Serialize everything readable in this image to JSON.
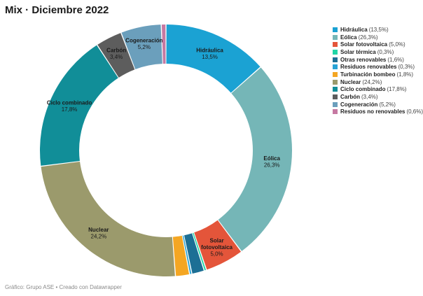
{
  "title": "Mix · Diciembre 2022",
  "footer": "Gráfico: Grupo ASE • Creado con Datawrapper",
  "chart_data": {
    "type": "pie",
    "subtype": "donut",
    "title": "Mix · Diciembre 2022",
    "unit": "%",
    "legend_position": "right",
    "slices": [
      {
        "name": "Hidráulica",
        "value": 13.5,
        "value_label": "13,5%",
        "legend_label": "(13,5%)",
        "color": "#1ba2d3",
        "chart_label": [
          "Hidráulica"
        ],
        "show_label": true
      },
      {
        "name": "Eólica",
        "value": 26.3,
        "value_label": "26,3%",
        "legend_label": "(26,3%)",
        "color": "#75b6b7",
        "chart_label": [
          "Eólica"
        ],
        "show_label": true
      },
      {
        "name": "Solar fotovoltaica",
        "value": 5.0,
        "value_label": "5,0%",
        "legend_label": "(5,0%)",
        "color": "#e4553a",
        "chart_label": [
          "Solar",
          "fotovoltaica"
        ],
        "show_label": true
      },
      {
        "name": "Solar térmica",
        "value": 0.3,
        "value_label": "0,3%",
        "legend_label": "(0,3%)",
        "color": "#20d5a6",
        "chart_label": [
          "Solar térmica"
        ],
        "show_label": false
      },
      {
        "name": "Otras renovables",
        "value": 1.6,
        "value_label": "1,6%",
        "legend_label": "(1,6%)",
        "color": "#1c6f95",
        "chart_label": [
          "Otras renovables"
        ],
        "show_label": false
      },
      {
        "name": "Residuos renovables",
        "value": 0.3,
        "value_label": "0,3%",
        "legend_label": "(0,3%)",
        "color": "#27a3d6",
        "chart_label": [
          "Residuos renovables"
        ],
        "show_label": false
      },
      {
        "name": "Turbinación bombeo",
        "value": 1.8,
        "value_label": "1,8%",
        "legend_label": "(1,8%)",
        "color": "#f4a623",
        "chart_label": [
          "Turbinación bombeo"
        ],
        "show_label": false
      },
      {
        "name": "Nuclear",
        "value": 24.2,
        "value_label": "24,2%",
        "legend_label": "(24,2%)",
        "color": "#9b9a6c",
        "chart_label": [
          "Nuclear"
        ],
        "show_label": true
      },
      {
        "name": "Ciclo combinado",
        "value": 17.8,
        "value_label": "17,8%",
        "legend_label": "(17,8%)",
        "color": "#118e98",
        "chart_label": [
          "Ciclo combinado"
        ],
        "show_label": true
      },
      {
        "name": "Carbón",
        "value": 3.4,
        "value_label": "3,4%",
        "legend_label": "(3,4%)",
        "color": "#5d5d5d",
        "chart_label": [
          "Carbón"
        ],
        "show_label": true
      },
      {
        "name": "Cogeneración",
        "value": 5.2,
        "value_label": "5,2%",
        "legend_label": "(5,2%)",
        "color": "#6b9fbc",
        "chart_label": [
          "Cogeneración"
        ],
        "show_label": true
      },
      {
        "name": "Residuos no renovables",
        "value": 0.6,
        "value_label": "0,6%",
        "legend_label": "(0,6%)",
        "color": "#c679a2",
        "chart_label": [
          "Residuos no renovables"
        ],
        "show_label": false
      }
    ]
  }
}
